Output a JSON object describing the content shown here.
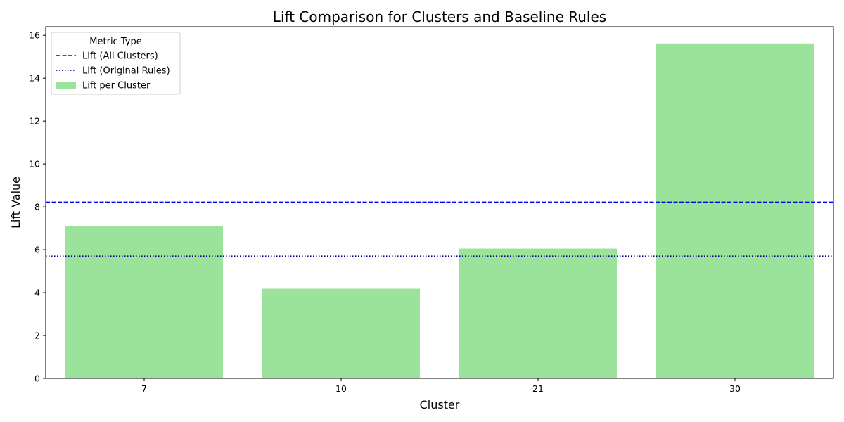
{
  "chart_data": {
    "type": "bar",
    "title": "Lift Comparison for Clusters and Baseline Rules",
    "xlabel": "Cluster",
    "ylabel": "Lift Value",
    "categories": [
      "7",
      "10",
      "21",
      "30"
    ],
    "series": [
      {
        "name": "Lift per Cluster",
        "values": [
          7.1,
          4.18,
          6.05,
          15.62
        ],
        "color": "#9be39b"
      }
    ],
    "reference_lines": [
      {
        "name": "Lift (All Clusters)",
        "value": 8.22,
        "style": "dashed",
        "color": "#0000ff"
      },
      {
        "name": "Lift (Original Rules)",
        "value": 5.7,
        "style": "dotted",
        "color": "#00008b"
      }
    ],
    "ylim": [
      0,
      16.4
    ],
    "yticks": [
      0,
      2,
      4,
      6,
      8,
      10,
      12,
      14,
      16
    ],
    "grid": false,
    "legend": {
      "title": "Metric Type",
      "placement": "top-left"
    }
  }
}
